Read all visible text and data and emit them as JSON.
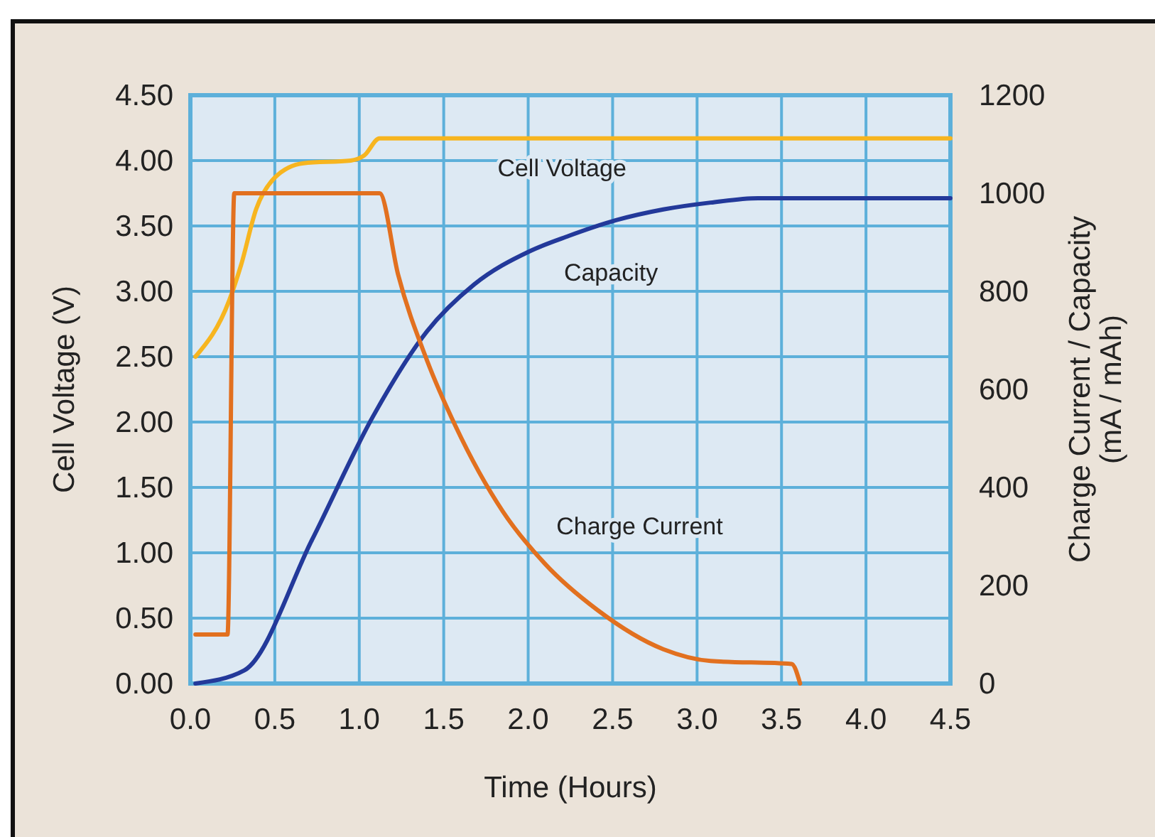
{
  "chart_data": {
    "type": "line",
    "xlabel": "Time (Hours)",
    "ylabel": "Cell Voltage (V)",
    "y2label": "Charge Current / Capacity\n(mA / mAh)",
    "xlim": [
      0,
      4.5
    ],
    "xticks": [
      {
        "value": 0,
        "label": "0.0"
      },
      {
        "value": 0.5,
        "label": "0.5"
      },
      {
        "value": 1,
        "label": "1.0"
      },
      {
        "value": 1.5,
        "label": "1.5"
      },
      {
        "value": 2,
        "label": "2.0"
      },
      {
        "value": 2.5,
        "label": "2.5"
      },
      {
        "value": 3,
        "label": "3.0"
      },
      {
        "value": 3.5,
        "label": "3.5"
      },
      {
        "value": 4,
        "label": "4.0"
      },
      {
        "value": 4.5,
        "label": "4.5"
      }
    ],
    "ylim": [
      0,
      4.5
    ],
    "yticks": [
      {
        "value": 0,
        "label": "0.00"
      },
      {
        "value": 0.5,
        "label": "0.50"
      },
      {
        "value": 1,
        "label": "1.00"
      },
      {
        "value": 1.5,
        "label": "1.50"
      },
      {
        "value": 2,
        "label": "2.00"
      },
      {
        "value": 2.5,
        "label": "2.50"
      },
      {
        "value": 3,
        "label": "3.00"
      },
      {
        "value": 3.5,
        "label": "3.50"
      },
      {
        "value": 4,
        "label": "4.00"
      },
      {
        "value": 4.5,
        "label": "4.50"
      }
    ],
    "y2lim": [
      0,
      1200
    ],
    "y2ticks": [
      0,
      200,
      400,
      600,
      800,
      1000,
      1200
    ],
    "grid": true,
    "marker": "none",
    "line_style": "solid",
    "series": [
      {
        "name": "Cell Voltage",
        "color": "#f7b51f",
        "x": [
          0.03,
          0.23,
          0.3,
          0.39,
          0.5,
          0.67,
          0.95,
          1.03,
          1.12,
          4.5
        ],
        "values": [
          2.5,
          2.93,
          3.2,
          3.63,
          3.87,
          3.98,
          4.0,
          4.04,
          4.17,
          4.17
        ]
      },
      {
        "name": "Capacity",
        "color": "#23399a",
        "axis": "y2",
        "x": [
          0.03,
          0.32,
          0.72,
          1.08,
          1.4,
          1.68,
          2.01,
          2.24,
          2.52,
          2.8,
          3.08,
          3.36,
          4.5
        ],
        "values": [
          0,
          27,
          293,
          544,
          718,
          814,
          882,
          913,
          945,
          967,
          981,
          990,
          990
        ]
      },
      {
        "name": "Charge Current",
        "color": "#e2701f",
        "axis": "y2",
        "x": [
          0.03,
          0.22,
          0.26,
          1.12,
          1.23,
          1.4,
          1.57,
          1.85,
          2.1,
          2.41,
          2.8,
          3.08,
          3.56,
          3.61
        ],
        "values": [
          100,
          100,
          1000,
          1000,
          834,
          660,
          525,
          351,
          244,
          150,
          70,
          46,
          40,
          0
        ]
      }
    ]
  }
}
